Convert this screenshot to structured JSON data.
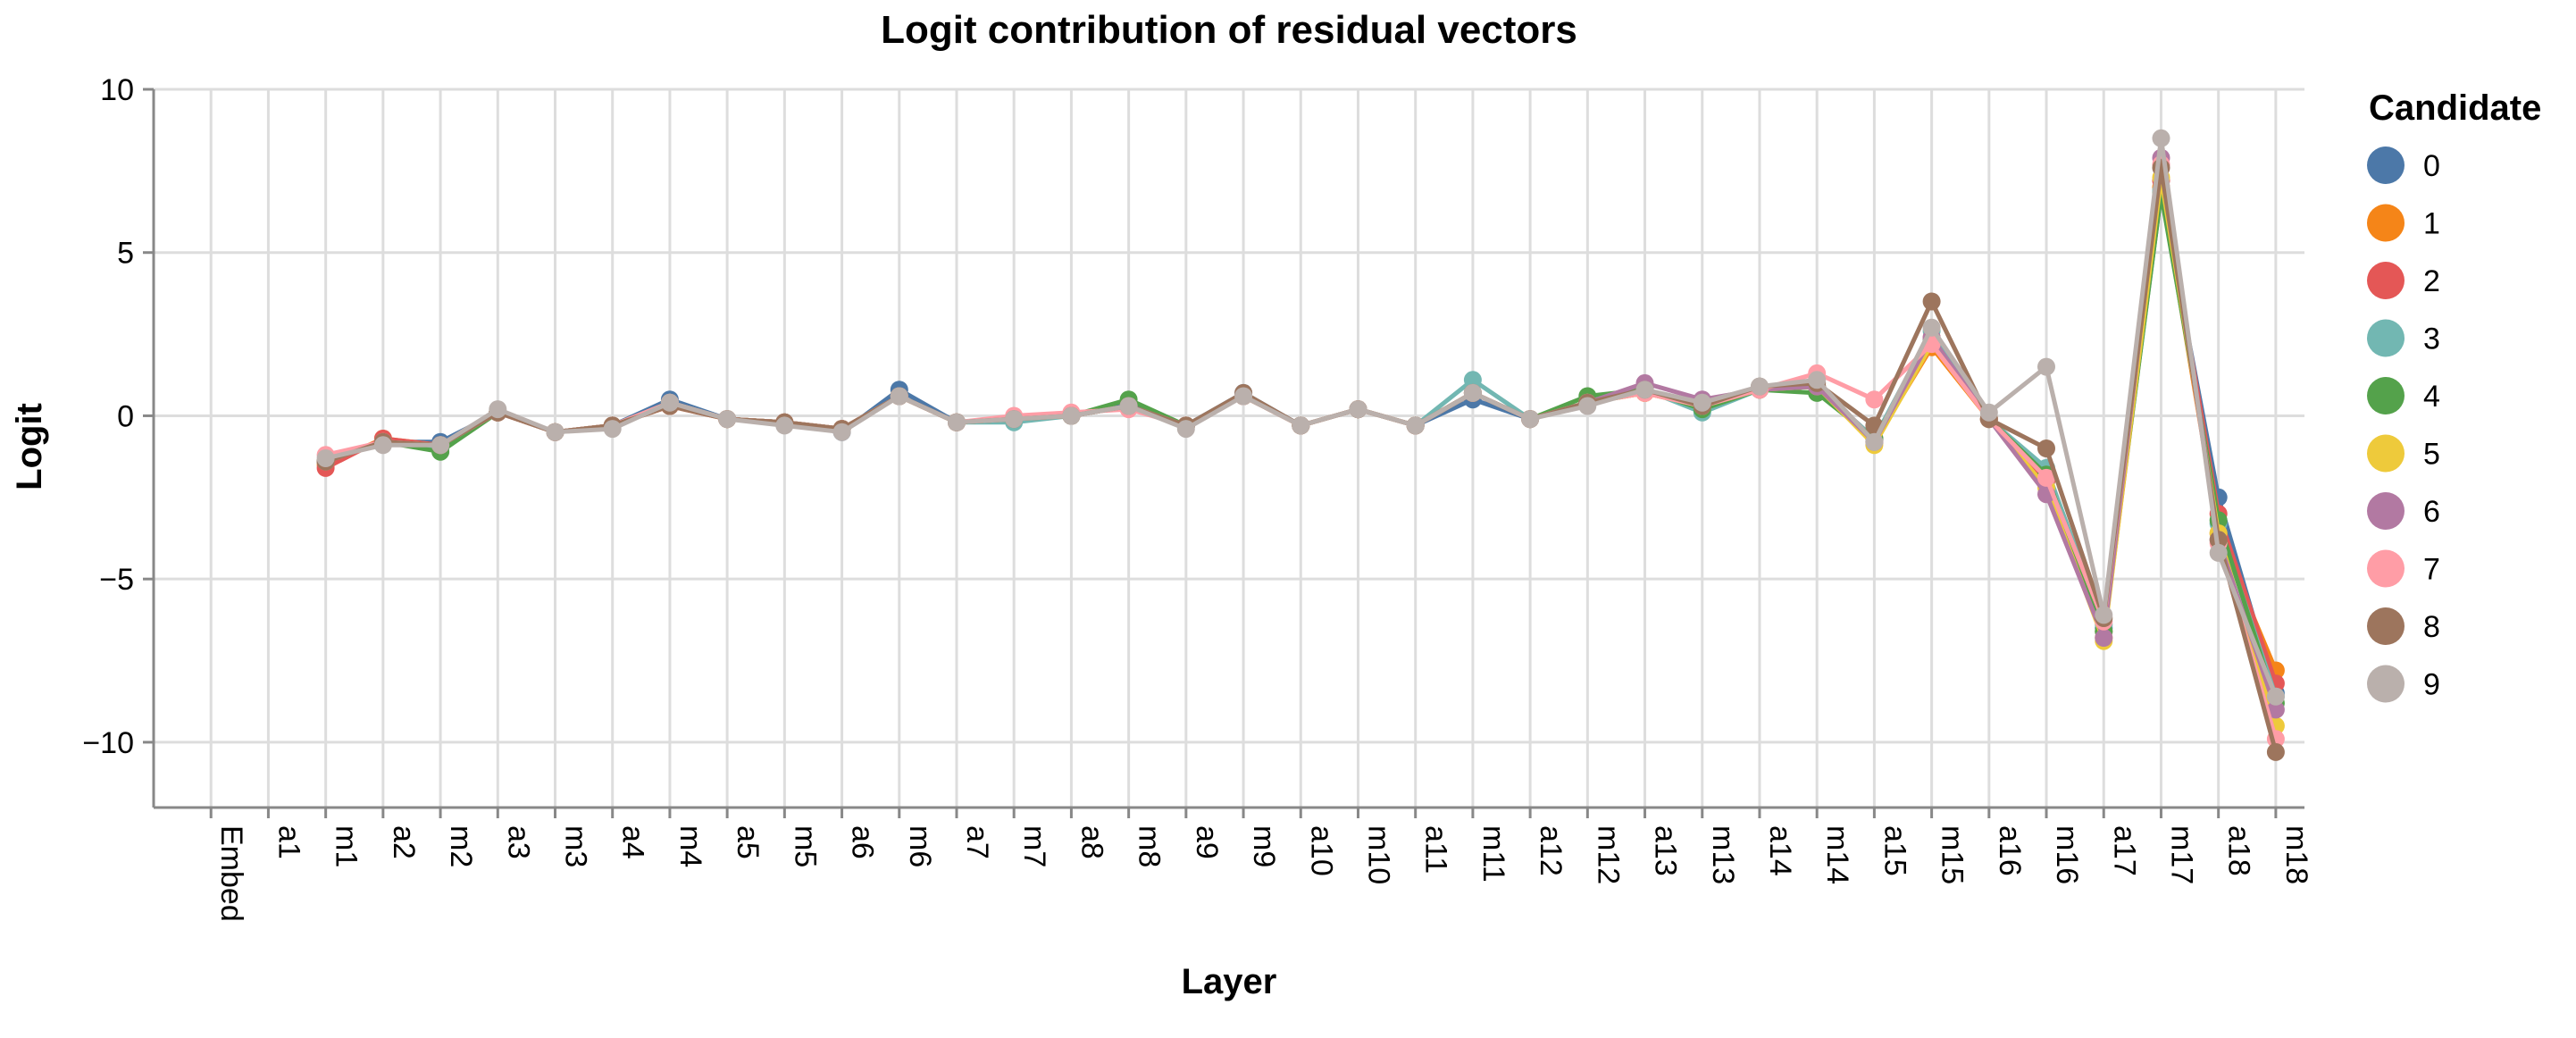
{
  "chart_data": {
    "type": "line",
    "title": "Logit contribution of residual vectors",
    "xlabel": "Layer",
    "ylabel": "Logit",
    "ylim": [
      -12,
      10
    ],
    "yticks": [
      10,
      5,
      0,
      -5,
      -10
    ],
    "ytick_labels": [
      "10",
      "5",
      "0",
      "−5",
      "−10"
    ],
    "grid": true,
    "legend_position": "right",
    "legend_title": "Candidate",
    "categories": [
      "Embed",
      "a1",
      "m1",
      "a2",
      "m2",
      "a3",
      "m3",
      "a4",
      "m4",
      "a5",
      "m5",
      "a6",
      "m6",
      "a7",
      "m7",
      "a8",
      "m8",
      "a9",
      "m9",
      "a10",
      "m10",
      "a11",
      "m11",
      "a12",
      "m12",
      "a13",
      "m13",
      "a14",
      "m14",
      "a15",
      "m15",
      "a16",
      "m16",
      "a17",
      "m17",
      "a18",
      "m18"
    ],
    "series": [
      {
        "name": "0",
        "color": "#4c78a8",
        "values": [
          null,
          null,
          -1.4,
          -0.8,
          -0.8,
          0.1,
          -0.5,
          -0.3,
          0.5,
          -0.1,
          -0.2,
          -0.5,
          0.8,
          -0.2,
          -0.1,
          0.0,
          0.4,
          -0.3,
          0.7,
          -0.3,
          0.2,
          -0.3,
          0.5,
          -0.1,
          0.4,
          0.8,
          0.3,
          0.8,
          0.9,
          -0.7,
          2.3,
          -0.1,
          -1.9,
          -6.5,
          6.8,
          -2.5,
          -8.5
        ]
      },
      {
        "name": "1",
        "color": "#f58518",
        "values": [
          null,
          null,
          -1.5,
          -0.7,
          -0.9,
          0.1,
          -0.5,
          -0.3,
          0.3,
          -0.1,
          -0.2,
          -0.4,
          0.6,
          -0.2,
          -0.1,
          0.0,
          0.3,
          -0.3,
          0.6,
          -0.3,
          0.2,
          -0.3,
          0.7,
          -0.1,
          0.4,
          0.7,
          0.3,
          0.8,
          0.9,
          -0.8,
          2.1,
          -0.1,
          -1.9,
          -6.8,
          7.0,
          -3.6,
          -7.8
        ]
      },
      {
        "name": "2",
        "color": "#e45756",
        "values": [
          null,
          null,
          -1.6,
          -0.7,
          -0.9,
          0.1,
          -0.5,
          -0.3,
          0.3,
          -0.1,
          -0.2,
          -0.4,
          0.6,
          -0.2,
          -0.1,
          0.0,
          0.3,
          -0.3,
          0.6,
          -0.3,
          0.2,
          -0.3,
          0.7,
          -0.1,
          0.4,
          0.7,
          0.3,
          0.8,
          0.9,
          -0.7,
          2.4,
          -0.1,
          -2.0,
          -6.6,
          7.2,
          -3.0,
          -8.2
        ]
      },
      {
        "name": "3",
        "color": "#72b7b2",
        "values": [
          null,
          null,
          -1.4,
          -0.8,
          -1.0,
          0.1,
          -0.5,
          -0.3,
          0.4,
          -0.1,
          -0.2,
          -0.4,
          0.6,
          -0.2,
          -0.2,
          0.0,
          0.3,
          -0.3,
          0.6,
          -0.3,
          0.2,
          -0.3,
          1.1,
          -0.1,
          0.4,
          0.8,
          0.1,
          0.8,
          0.9,
          -0.7,
          2.6,
          -0.1,
          -1.6,
          -6.4,
          6.9,
          -3.3,
          -8.6
        ]
      },
      {
        "name": "4",
        "color": "#54a24b",
        "values": [
          null,
          null,
          -1.4,
          -0.8,
          -1.1,
          0.1,
          -0.5,
          -0.3,
          0.4,
          -0.1,
          -0.2,
          -0.4,
          0.6,
          -0.2,
          -0.1,
          0.0,
          0.5,
          -0.3,
          0.6,
          -0.3,
          0.2,
          -0.3,
          0.7,
          -0.1,
          0.6,
          0.8,
          0.2,
          0.8,
          0.7,
          -0.7,
          2.3,
          -0.1,
          -1.8,
          -6.6,
          6.8,
          -3.2,
          -8.8
        ]
      },
      {
        "name": "5",
        "color": "#eeca3b",
        "values": [
          null,
          null,
          -1.4,
          -0.8,
          -0.9,
          0.1,
          -0.5,
          -0.3,
          0.4,
          -0.1,
          -0.2,
          -0.4,
          0.6,
          -0.2,
          -0.1,
          0.0,
          0.3,
          -0.3,
          0.6,
          -0.3,
          0.2,
          -0.3,
          0.7,
          -0.1,
          0.4,
          0.7,
          0.3,
          0.8,
          0.9,
          -0.9,
          2.2,
          -0.1,
          -2.2,
          -6.9,
          7.3,
          -3.6,
          -9.5
        ]
      },
      {
        "name": "6",
        "color": "#b279a2",
        "values": [
          null,
          null,
          -1.4,
          -0.8,
          -0.9,
          0.1,
          -0.5,
          -0.3,
          0.4,
          -0.1,
          -0.2,
          -0.4,
          0.6,
          -0.2,
          -0.1,
          0.0,
          0.3,
          -0.3,
          0.6,
          -0.3,
          0.2,
          -0.3,
          0.7,
          -0.1,
          0.4,
          1.0,
          0.5,
          0.8,
          0.9,
          -0.8,
          2.4,
          -0.1,
          -2.4,
          -6.8,
          7.9,
          -3.8,
          -9.0
        ]
      },
      {
        "name": "7",
        "color": "#ff9da6",
        "values": [
          null,
          null,
          -1.2,
          -0.8,
          -0.9,
          0.1,
          -0.5,
          -0.3,
          0.4,
          -0.1,
          -0.2,
          -0.4,
          0.6,
          -0.2,
          0.0,
          0.1,
          0.2,
          -0.3,
          0.6,
          -0.3,
          0.2,
          -0.3,
          0.7,
          -0.1,
          0.4,
          0.7,
          0.3,
          0.8,
          1.3,
          0.5,
          2.2,
          -0.1,
          -1.9,
          -6.3,
          7.7,
          -3.9,
          -9.9
        ]
      },
      {
        "name": "8",
        "color": "#9d755d",
        "values": [
          null,
          null,
          -1.4,
          -0.8,
          -0.9,
          0.1,
          -0.5,
          -0.3,
          0.3,
          -0.1,
          -0.2,
          -0.4,
          0.6,
          -0.2,
          -0.1,
          0.0,
          0.3,
          -0.3,
          0.7,
          -0.3,
          0.2,
          -0.3,
          0.7,
          -0.1,
          0.4,
          0.8,
          0.3,
          0.9,
          1.0,
          -0.3,
          3.5,
          -0.1,
          -1.0,
          -6.2,
          7.6,
          -3.8,
          -10.3
        ]
      },
      {
        "name": "9",
        "color": "#bab0ac",
        "values": [
          null,
          null,
          -1.3,
          -0.9,
          -0.9,
          0.2,
          -0.5,
          -0.4,
          0.4,
          -0.1,
          -0.3,
          -0.5,
          0.6,
          -0.2,
          -0.1,
          0.0,
          0.3,
          -0.4,
          0.6,
          -0.3,
          0.2,
          -0.3,
          0.7,
          -0.1,
          0.3,
          0.8,
          0.4,
          0.9,
          1.1,
          -0.8,
          2.7,
          0.1,
          1.5,
          -6.1,
          8.5,
          -4.2,
          -8.6
        ]
      }
    ]
  }
}
